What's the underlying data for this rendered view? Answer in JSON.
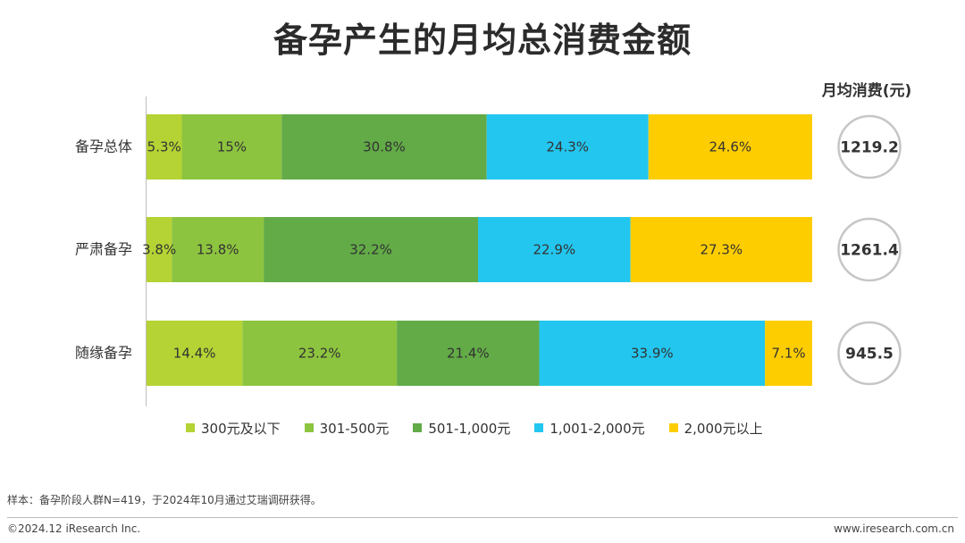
{
  "title": "备孕产生的月均总消费金额",
  "avg_header": "月均消费(元)",
  "footnote": "样本：备孕阶段人群N=419，于2024年10月通过艾瑞调研获得。",
  "copyright": "©2024.12 iResearch Inc.",
  "website": "www.iresearch.com.cn",
  "chart_data": {
    "type": "bar",
    "orientation": "horizontal",
    "stacked": true,
    "percent_stacked": true,
    "categories": [
      "备孕总体",
      "严肃备孕",
      "随缘备孕"
    ],
    "series": [
      {
        "name": "300元及以下",
        "color": "#b5d334",
        "values": [
          5.3,
          3.8,
          14.4
        ],
        "labels": [
          "5.3%",
          "3.8%",
          "14.4%"
        ]
      },
      {
        "name": "301-500元",
        "color": "#8dc43f",
        "values": [
          15,
          13.8,
          23.2
        ],
        "labels": [
          "15%",
          "13.8%",
          "23.2%"
        ]
      },
      {
        "name": "501-1,000元",
        "color": "#62ab47",
        "values": [
          30.8,
          32.2,
          21.4
        ],
        "labels": [
          "30.8%",
          "32.2%",
          "21.4%"
        ]
      },
      {
        "name": "1,001-2,000元",
        "color": "#23c6ef",
        "values": [
          24.3,
          22.9,
          33.9
        ],
        "labels": [
          "24.3%",
          "22.9%",
          "33.9%"
        ]
      },
      {
        "name": "2,000元以上",
        "color": "#fecd00",
        "values": [
          24.6,
          27.3,
          7.1
        ],
        "labels": [
          "24.6%",
          "27.3%",
          "7.1%"
        ]
      }
    ],
    "monthly_average": [
      "1219.2",
      "1261.4",
      "945.5"
    ],
    "legend_position": "bottom",
    "grid": false
  }
}
